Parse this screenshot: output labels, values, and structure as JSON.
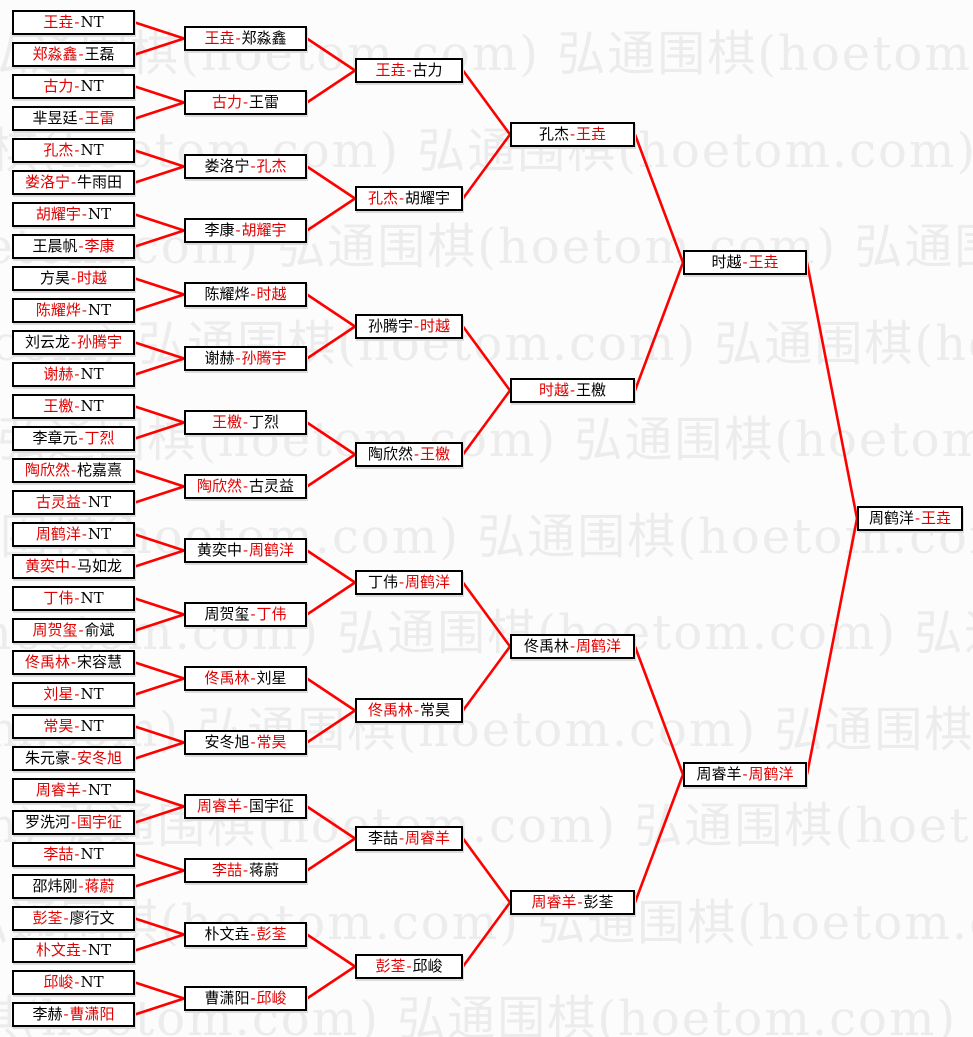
{
  "watermark": {
    "text": "弘通围棋(hoetom.com)"
  },
  "separator": "-",
  "bye_label": "NT",
  "colors": {
    "background": "#fcfcfc",
    "watermark": "#ececec",
    "connector_line": "#ff0000",
    "winner_text": "#e10000",
    "loser_text": "#000000",
    "box_border": "#000000",
    "box_fill": "#ffffff"
  },
  "champion": "王垚",
  "rounds": [
    [
      {
        "left": "王垚",
        "right": "NT",
        "winner": "left"
      },
      {
        "left": "郑淼鑫",
        "right": "王磊",
        "winner": "left"
      },
      {
        "left": "古力",
        "right": "NT",
        "winner": "left"
      },
      {
        "left": "芈昱廷",
        "right": "王雷",
        "winner": "right"
      },
      {
        "left": "孔杰",
        "right": "NT",
        "winner": "left"
      },
      {
        "left": "娄洛宁",
        "right": "牛雨田",
        "winner": "left"
      },
      {
        "left": "胡耀宇",
        "right": "NT",
        "winner": "left"
      },
      {
        "left": "王晨帆",
        "right": "李康",
        "winner": "right"
      },
      {
        "left": "方昊",
        "right": "时越",
        "winner": "right"
      },
      {
        "left": "陈耀烨",
        "right": "NT",
        "winner": "left"
      },
      {
        "left": "刘云龙",
        "right": "孙腾宇",
        "winner": "right"
      },
      {
        "left": "谢赫",
        "right": "NT",
        "winner": "left"
      },
      {
        "left": "王檄",
        "right": "NT",
        "winner": "left"
      },
      {
        "left": "李章元",
        "right": "丁烈",
        "winner": "right"
      },
      {
        "left": "陶欣然",
        "right": "柁嘉熹",
        "winner": "left"
      },
      {
        "left": "古灵益",
        "right": "NT",
        "winner": "left"
      },
      {
        "left": "周鹤洋",
        "right": "NT",
        "winner": "left"
      },
      {
        "left": "黄奕中",
        "right": "马如龙",
        "winner": "left"
      },
      {
        "left": "丁伟",
        "right": "NT",
        "winner": "left"
      },
      {
        "left": "周贺玺",
        "right": "俞斌",
        "winner": "left"
      },
      {
        "left": "佟禹林",
        "right": "宋容慧",
        "winner": "left"
      },
      {
        "left": "刘星",
        "right": "NT",
        "winner": "left"
      },
      {
        "left": "常昊",
        "right": "NT",
        "winner": "left"
      },
      {
        "left": "朱元豪",
        "right": "安冬旭",
        "winner": "right"
      },
      {
        "left": "周睿羊",
        "right": "NT",
        "winner": "left"
      },
      {
        "left": "罗洗河",
        "right": "国宇征",
        "winner": "right"
      },
      {
        "left": "李喆",
        "right": "NT",
        "winner": "left"
      },
      {
        "left": "邵炜刚",
        "right": "蒋蔚",
        "winner": "right"
      },
      {
        "left": "彭荃",
        "right": "廖行文",
        "winner": "left"
      },
      {
        "left": "朴文垚",
        "right": "NT",
        "winner": "left"
      },
      {
        "left": "邱峻",
        "right": "NT",
        "winner": "left"
      },
      {
        "left": "李赫",
        "right": "曹潇阳",
        "winner": "right"
      }
    ],
    [
      {
        "left": "王垚",
        "right": "郑淼鑫",
        "winner": "left"
      },
      {
        "left": "古力",
        "right": "王雷",
        "winner": "left"
      },
      {
        "left": "娄洛宁",
        "right": "孔杰",
        "winner": "right"
      },
      {
        "left": "李康",
        "right": "胡耀宇",
        "winner": "right"
      },
      {
        "left": "陈耀烨",
        "right": "时越",
        "winner": "right"
      },
      {
        "left": "谢赫",
        "right": "孙腾宇",
        "winner": "right"
      },
      {
        "left": "王檄",
        "right": "丁烈",
        "winner": "left"
      },
      {
        "left": "陶欣然",
        "right": "古灵益",
        "winner": "left"
      },
      {
        "left": "黄奕中",
        "right": "周鹤洋",
        "winner": "right"
      },
      {
        "left": "周贺玺",
        "right": "丁伟",
        "winner": "right"
      },
      {
        "left": "佟禹林",
        "right": "刘星",
        "winner": "left"
      },
      {
        "left": "安冬旭",
        "right": "常昊",
        "winner": "right"
      },
      {
        "left": "周睿羊",
        "right": "国宇征",
        "winner": "left"
      },
      {
        "left": "李喆",
        "right": "蒋蔚",
        "winner": "left"
      },
      {
        "left": "朴文垚",
        "right": "彭荃",
        "winner": "right"
      },
      {
        "left": "曹潇阳",
        "right": "邱峻",
        "winner": "right"
      }
    ],
    [
      {
        "left": "王垚",
        "right": "古力",
        "winner": "left"
      },
      {
        "left": "孔杰",
        "right": "胡耀宇",
        "winner": "left"
      },
      {
        "left": "孙腾宇",
        "right": "时越",
        "winner": "right"
      },
      {
        "left": "陶欣然",
        "right": "王檄",
        "winner": "right"
      },
      {
        "left": "丁伟",
        "right": "周鹤洋",
        "winner": "right"
      },
      {
        "left": "佟禹林",
        "right": "常昊",
        "winner": "left"
      },
      {
        "left": "李喆",
        "right": "周睿羊",
        "winner": "right"
      },
      {
        "left": "彭荃",
        "right": "邱峻",
        "winner": "left"
      }
    ],
    [
      {
        "left": "孔杰",
        "right": "王垚",
        "winner": "right"
      },
      {
        "left": "时越",
        "right": "王檄",
        "winner": "left"
      },
      {
        "left": "佟禹林",
        "right": "周鹤洋",
        "winner": "right"
      },
      {
        "left": "周睿羊",
        "right": "彭荃",
        "winner": "left"
      }
    ],
    [
      {
        "left": "时越",
        "right": "王垚",
        "winner": "right"
      },
      {
        "left": "周睿羊",
        "right": "周鹤洋",
        "winner": "right"
      }
    ],
    [
      {
        "left": "周鹤洋",
        "right": "王垚",
        "winner": "right"
      }
    ]
  ]
}
